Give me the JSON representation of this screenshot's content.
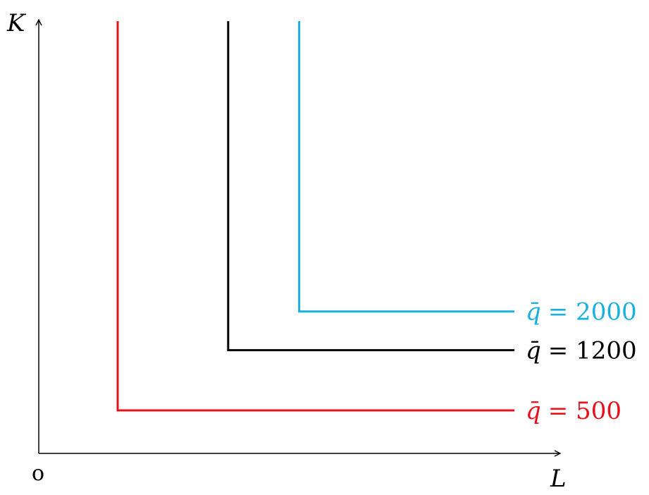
{
  "chart_data": {
    "type": "line",
    "title": "",
    "xlabel": "L",
    "ylabel": "K",
    "origin_label": "o",
    "grid": false,
    "series": [
      {
        "name": "q̄ = 500",
        "label_var": "q̄",
        "label_eq": "= 500",
        "color": "#e8111b",
        "corner": [
          1.0,
          1.0
        ]
      },
      {
        "name": "q̄ = 1200",
        "label_var": "q̄",
        "label_eq": "= 1200",
        "color": "#000000",
        "corner": [
          2.4,
          2.4
        ]
      },
      {
        "name": "q̄ = 2000",
        "label_var": "q̄",
        "label_eq": "= 2000",
        "color": "#1ab0e0",
        "corner": [
          3.3,
          3.3
        ]
      }
    ]
  }
}
